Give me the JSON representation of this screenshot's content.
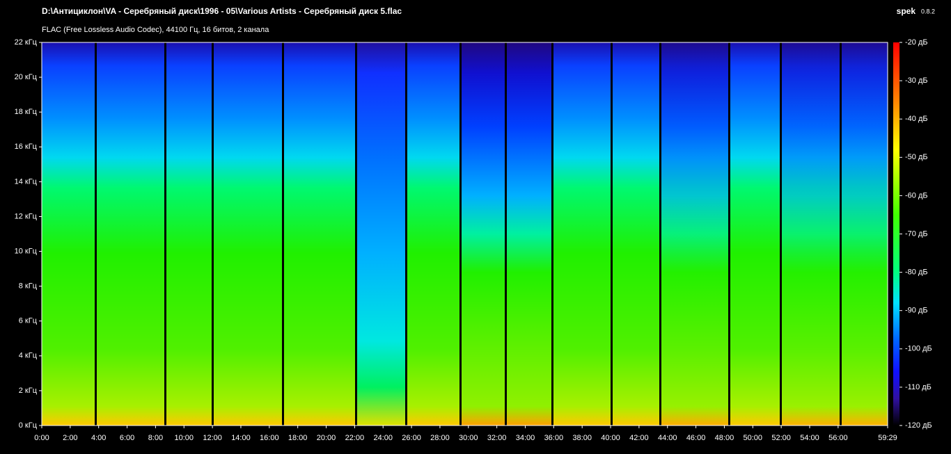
{
  "chart_data": {
    "type": "spectrogram",
    "title": "D:\\Антициклон\\VA - Серебряный диск\\1996 - 05\\Various Artists - Серебряный диск 5.flac",
    "subtitle": "FLAC (Free Lossless Audio Codec), 44100 Гц, 16 битов, 2 канала",
    "app_name": "spek",
    "app_version": "0.8.2",
    "xlim": [
      0,
      3569
    ],
    "xticks": [
      {
        "value": 0,
        "label": "0:00"
      },
      {
        "value": 120,
        "label": "2:00"
      },
      {
        "value": 240,
        "label": "4:00"
      },
      {
        "value": 360,
        "label": "6:00"
      },
      {
        "value": 480,
        "label": "8:00"
      },
      {
        "value": 600,
        "label": "10:00"
      },
      {
        "value": 720,
        "label": "12:00"
      },
      {
        "value": 840,
        "label": "14:00"
      },
      {
        "value": 960,
        "label": "16:00"
      },
      {
        "value": 1080,
        "label": "18:00"
      },
      {
        "value": 1200,
        "label": "20:00"
      },
      {
        "value": 1320,
        "label": "22:00"
      },
      {
        "value": 1440,
        "label": "24:00"
      },
      {
        "value": 1560,
        "label": "26:00"
      },
      {
        "value": 1680,
        "label": "28:00"
      },
      {
        "value": 1800,
        "label": "30:00"
      },
      {
        "value": 1920,
        "label": "32:00"
      },
      {
        "value": 2040,
        "label": "34:00"
      },
      {
        "value": 2160,
        "label": "36:00"
      },
      {
        "value": 2280,
        "label": "38:00"
      },
      {
        "value": 2400,
        "label": "40:00"
      },
      {
        "value": 2520,
        "label": "42:00"
      },
      {
        "value": 2640,
        "label": "44:00"
      },
      {
        "value": 2760,
        "label": "46:00"
      },
      {
        "value": 2880,
        "label": "48:00"
      },
      {
        "value": 3000,
        "label": "50:00"
      },
      {
        "value": 3120,
        "label": "52:00"
      },
      {
        "value": 3240,
        "label": "54:00"
      },
      {
        "value": 3360,
        "label": "56:00"
      },
      {
        "value": 3569,
        "label": "59:29"
      }
    ],
    "ylim": [
      0,
      22
    ],
    "yticks": [
      {
        "value": 0,
        "label": "0 кГц"
      },
      {
        "value": 2,
        "label": "2 кГц"
      },
      {
        "value": 4,
        "label": "4 кГц"
      },
      {
        "value": 6,
        "label": "6 кГц"
      },
      {
        "value": 8,
        "label": "8 кГц"
      },
      {
        "value": 10,
        "label": "10 кГц"
      },
      {
        "value": 12,
        "label": "12 кГц"
      },
      {
        "value": 14,
        "label": "14 кГц"
      },
      {
        "value": 16,
        "label": "16 кГц"
      },
      {
        "value": 18,
        "label": "18 кГц"
      },
      {
        "value": 20,
        "label": "20 кГц"
      },
      {
        "value": 22,
        "label": "22 кГц"
      }
    ],
    "colorbar_lim": [
      -120,
      -20
    ],
    "colorbar_ticks": [
      {
        "value": -20,
        "label": "-20 дБ"
      },
      {
        "value": -30,
        "label": "-30 дБ"
      },
      {
        "value": -40,
        "label": "-40 дБ"
      },
      {
        "value": -50,
        "label": "-50 дБ"
      },
      {
        "value": -60,
        "label": "-60 дБ"
      },
      {
        "value": -70,
        "label": "-70 дБ"
      },
      {
        "value": -80,
        "label": "-80 дБ"
      },
      {
        "value": -90,
        "label": "-90 дБ"
      },
      {
        "value": -100,
        "label": "-100 дБ"
      },
      {
        "value": -110,
        "label": "-110 дБ"
      },
      {
        "value": -120,
        "label": "-120 дБ"
      }
    ]
  }
}
